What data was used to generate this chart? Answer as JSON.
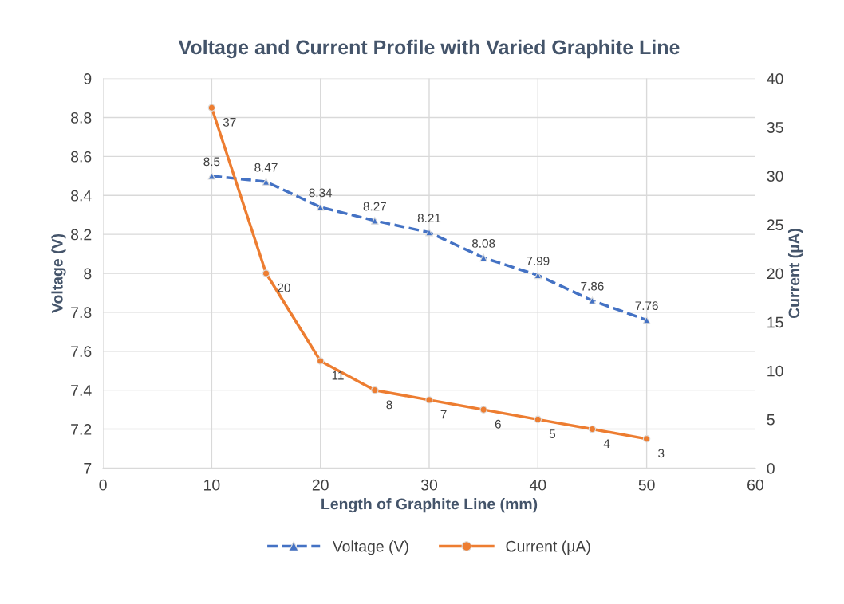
{
  "chart_data": {
    "type": "line",
    "title": "Voltage and Current Profile with Varied Graphite Line",
    "xlabel": "Length of Graphite Line (mm)",
    "ylabel": "Voltage (V)",
    "y2label": "Current (µA)",
    "x": [
      10,
      15,
      20,
      25,
      30,
      35,
      40,
      45,
      50
    ],
    "series": [
      {
        "name": "Voltage (V)",
        "color": "#4472c4",
        "values": [
          8.5,
          8.47,
          8.34,
          8.27,
          8.21,
          8.08,
          7.99,
          7.86,
          7.76
        ],
        "marker": "triangle",
        "line_style": "dashed"
      },
      {
        "name": "Current (µA)",
        "color": "#ed7d31",
        "values": [
          37,
          20,
          11,
          8,
          7,
          6,
          5,
          4,
          3
        ],
        "axis": "y2",
        "marker": "circle",
        "line_style": "solid"
      }
    ],
    "xlim": [
      0,
      60
    ],
    "xticks": [
      0,
      10,
      20,
      30,
      40,
      50,
      60
    ],
    "ylim": [
      7,
      9
    ],
    "yticks": [
      7,
      7.2,
      7.4,
      7.6,
      7.8,
      8,
      8.2,
      8.4,
      8.6,
      8.8,
      9
    ],
    "y2lim": [
      0,
      40
    ],
    "y2ticks": [
      0,
      5,
      10,
      15,
      20,
      25,
      30,
      35,
      40
    ],
    "grid": true,
    "legend": "bottom",
    "data_labels": true
  }
}
